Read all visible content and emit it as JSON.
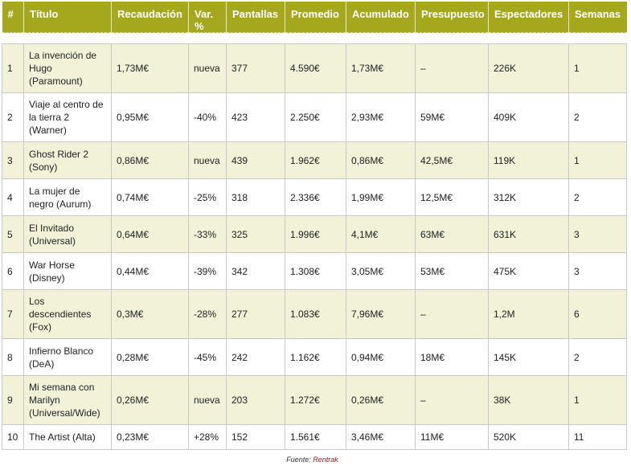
{
  "headers": [
    "#",
    "Título",
    "Recaudación",
    "Var. %",
    "Pantallas",
    "Promedio",
    "Acumulado",
    "Presupuesto",
    "Espectadores",
    "Semanas"
  ],
  "rows": [
    [
      "1",
      "La invención de Hugo (Paramount)",
      "1,73M€",
      "nueva",
      "377",
      "4.590€",
      "1,73M€",
      "–",
      "226K",
      "1"
    ],
    [
      "2",
      "Viaje al centro de la tierra 2 (Warner)",
      "0,95M€",
      "-40%",
      "423",
      "2.250€",
      "2,93M€",
      "59M€",
      "409K",
      "2"
    ],
    [
      "3",
      "Ghost Rider 2 (Sony)",
      "0,86M€",
      "nueva",
      "439",
      "1.962€",
      "0,86M€",
      "42,5M€",
      "119K",
      "1"
    ],
    [
      "4",
      "La mujer de negro (Aurum)",
      "0,74M€",
      "-25%",
      "318",
      "2.336€",
      "1,99M€",
      "12,5M€",
      "312K",
      "2"
    ],
    [
      "5",
      "El Invitado (Universal)",
      "0,64M€",
      "-33%",
      "325",
      "1.996€",
      "4,1M€",
      "63M€",
      "631K",
      "3"
    ],
    [
      "6",
      "War Horse (Disney)",
      "0,44M€",
      "-39%",
      "342",
      "1.308€",
      "3,05M€",
      "53M€",
      "475K",
      "3"
    ],
    [
      "7",
      "Los descendientes (Fox)",
      "0,3M€",
      "-28%",
      "277",
      "1.083€",
      "7,96M€",
      "–",
      "1,2M",
      "6"
    ],
    [
      "8",
      "Infierno Blanco (DeA)",
      "0,28M€",
      "-45%",
      "242",
      "1.162€",
      "0,94M€",
      "18M€",
      "145K",
      "2"
    ],
    [
      "9",
      "Mi semana con Marilyn (Universal/Wide)",
      "0,26M€",
      "nueva",
      "203",
      "1.272€",
      "0,26M€",
      "–",
      "38K",
      "1"
    ],
    [
      "10",
      "The Artist (Alta)",
      "0,23M€",
      "+28%",
      "152",
      "1.561€",
      "3,46M€",
      "11M€",
      "520K",
      "11"
    ]
  ],
  "source": {
    "label": "Fuente:",
    "name": "Rentrak"
  }
}
